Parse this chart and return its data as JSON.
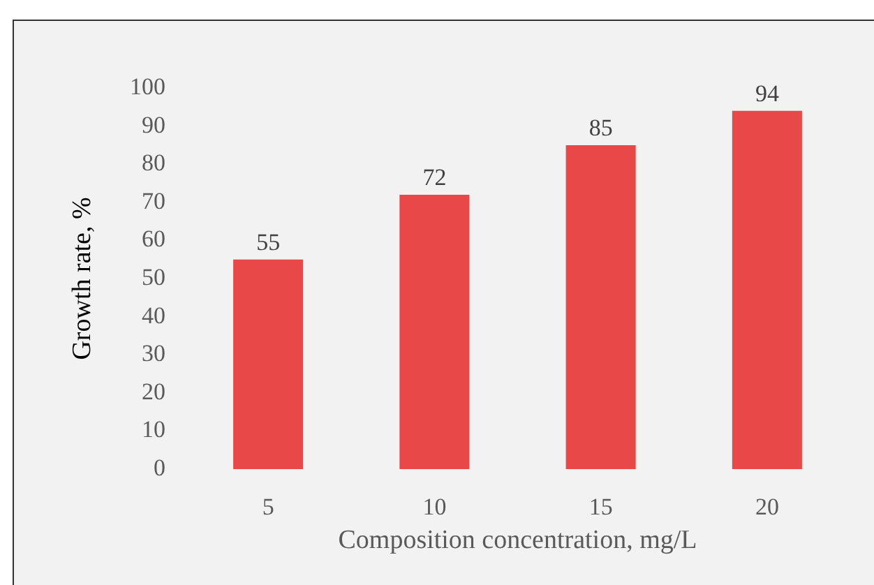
{
  "chart_data": {
    "type": "bar",
    "xlabel": "Composition concentration, mg/L",
    "ylabel": "Growth rate, %",
    "categories": [
      "5",
      "10",
      "15",
      "20"
    ],
    "values": [
      55,
      72,
      85,
      94
    ],
    "color": "#e84848",
    "ylim": [
      0,
      100
    ],
    "yticks": [
      0,
      10,
      20,
      30,
      40,
      50,
      60,
      70,
      80,
      90,
      100
    ],
    "data_labels": true,
    "grid": false,
    "legend": false
  }
}
